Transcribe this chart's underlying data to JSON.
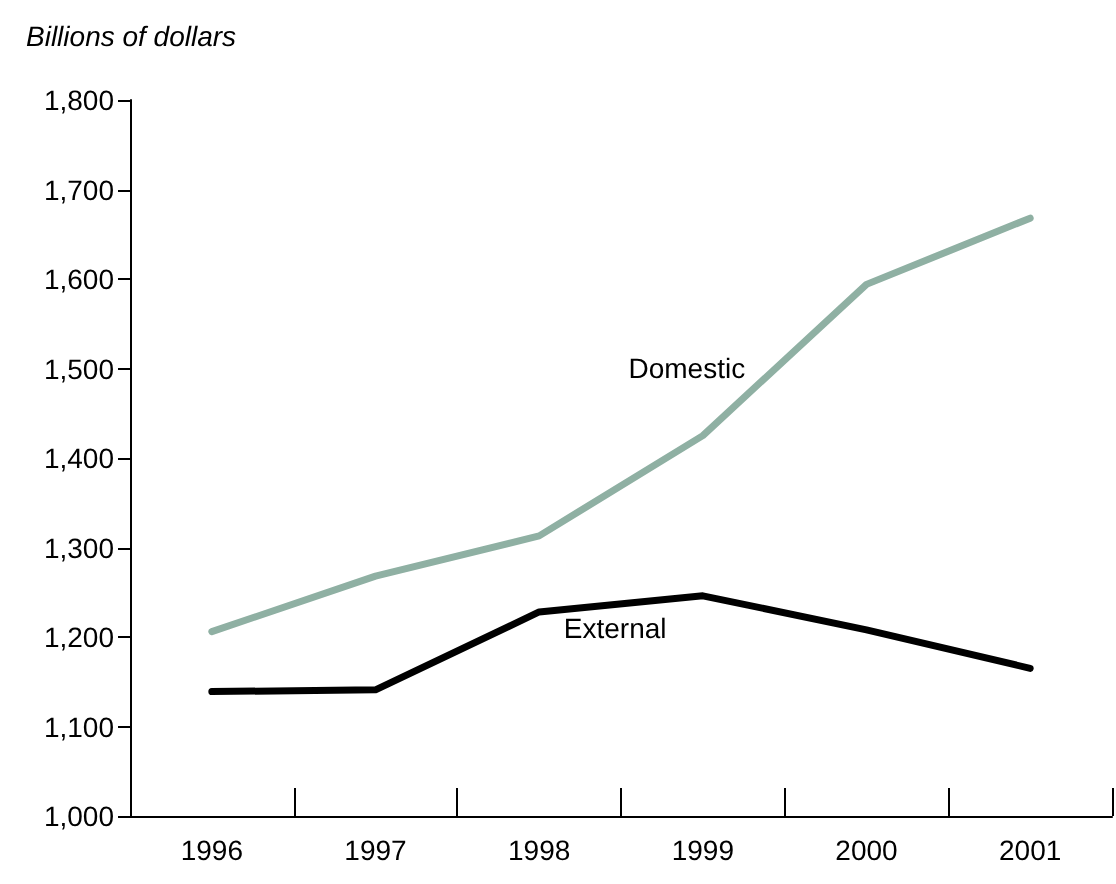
{
  "chart_data": {
    "type": "line",
    "title": "Billions of dollars",
    "categories": [
      "1996",
      "1997",
      "1998",
      "1999",
      "2000",
      "2001"
    ],
    "series": [
      {
        "name": "Domestic",
        "color": "#8fb0a3",
        "values": [
          1206,
          1268,
          1313,
          1425,
          1594,
          1668
        ]
      },
      {
        "name": "External",
        "color": "#000000",
        "values": [
          1139,
          1141,
          1228,
          1246,
          1208,
          1165
        ]
      }
    ],
    "ylim": [
      1000,
      1800
    ],
    "yticks": [
      {
        "value": 1000,
        "label": "1,000"
      },
      {
        "value": 1100,
        "label": "1,100"
      },
      {
        "value": 1200,
        "label": "1,200"
      },
      {
        "value": 1300,
        "label": "1,300"
      },
      {
        "value": 1400,
        "label": "1,400"
      },
      {
        "value": 1500,
        "label": "1,500"
      },
      {
        "value": 1600,
        "label": "1,600"
      },
      {
        "value": 1700,
        "label": "1,700"
      },
      {
        "value": 1800,
        "label": "1,800"
      }
    ],
    "grid": false,
    "legend": false,
    "marker": "none",
    "line_style": "solid"
  }
}
